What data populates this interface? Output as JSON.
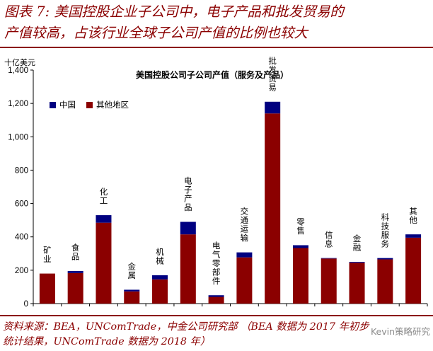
{
  "heading": {
    "line1": "图表 7: 美国控股企业子公司中，电子产品和批发贸易的",
    "line2": "产值较高，占该行业全球子公司产值的比例也较大"
  },
  "source": {
    "line1": "资料来源：BEA，UNComTrade，中金公司研究部 （BEA 数据为 2017 年初步",
    "line2": "统计结果，UNComTrade 数据为 2018 年）"
  },
  "watermark": "Kevin策略研究",
  "colors": {
    "china": "#000080",
    "other": "#8b0000",
    "accent": "#8b0000"
  },
  "chart_data": {
    "type": "bar",
    "stacked": true,
    "title": "美国控股公司子公司产值（服务及产品）",
    "unit_label": "十亿美元",
    "xlabel": "",
    "ylabel": "十亿美元",
    "ylim": [
      0,
      1400
    ],
    "yticks": [
      "0",
      "200",
      "400",
      "600",
      "800",
      "1,000",
      "1,200",
      "1,400"
    ],
    "ytick_values": [
      0,
      200,
      400,
      600,
      800,
      1000,
      1200,
      1400
    ],
    "grid": false,
    "legend_position": "top-left",
    "categories": [
      "矿业",
      "食品",
      "化工",
      "金属",
      "机械",
      "电子产品",
      "电气零部件",
      "交通运输",
      "批发贸易",
      "零售",
      "信息",
      "金融",
      "科技服务",
      "其他"
    ],
    "series": [
      {
        "name": "其他地区",
        "color": "#8b0000",
        "values": [
          180,
          183,
          485,
          73,
          145,
          415,
          40,
          277,
          1140,
          333,
          270,
          245,
          265,
          395
        ]
      },
      {
        "name": "中国",
        "color": "#000080",
        "values": [
          0,
          12,
          45,
          10,
          25,
          75,
          10,
          30,
          70,
          17,
          3,
          5,
          8,
          20
        ]
      }
    ],
    "legend": [
      "中国",
      "其他地区"
    ]
  }
}
